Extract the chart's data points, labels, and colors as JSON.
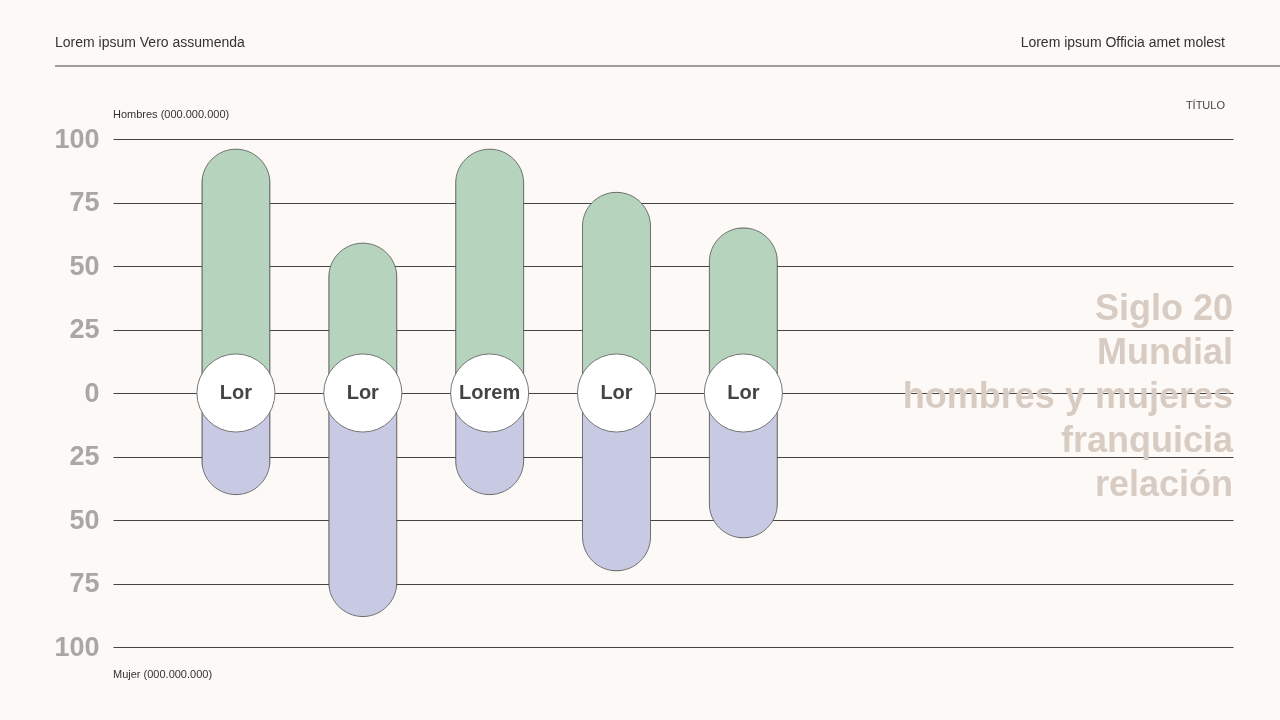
{
  "chart_data": {
    "type": "bar",
    "title": "Siglo 20\nMundial\nhombres y mujeres\nfranquicia\nrelación",
    "subtitle": "TÍTULO",
    "ylabel": "Hombres (000.000.000)",
    "annotations": [
      "Lorem ipsum Vero assumenda",
      "Lorem ipsum Officia amet molest",
      "Mujer (000.000.000)"
    ],
    "categories": [
      "Lor",
      "Lor",
      "Lorem",
      "Lor",
      "Lor"
    ],
    "stacked": true,
    "series": [
      {
        "color": "#b5d3bd",
        "values": [
          96,
          59,
          96,
          79,
          65
        ]
      },
      {
        "color": "#c8cae3",
        "values": [
          -40,
          -88,
          -40,
          -70,
          -57
        ]
      }
    ],
    "ylim": [
      -100,
      100
    ],
    "yticks": [
      {
        "value": -100,
        "label": "100"
      },
      {
        "value": -75,
        "label": "75"
      },
      {
        "value": -50,
        "label": "50"
      },
      {
        "value": -25,
        "label": "25"
      },
      0,
      25,
      50,
      75,
      100
    ],
    "grid": "y"
  }
}
